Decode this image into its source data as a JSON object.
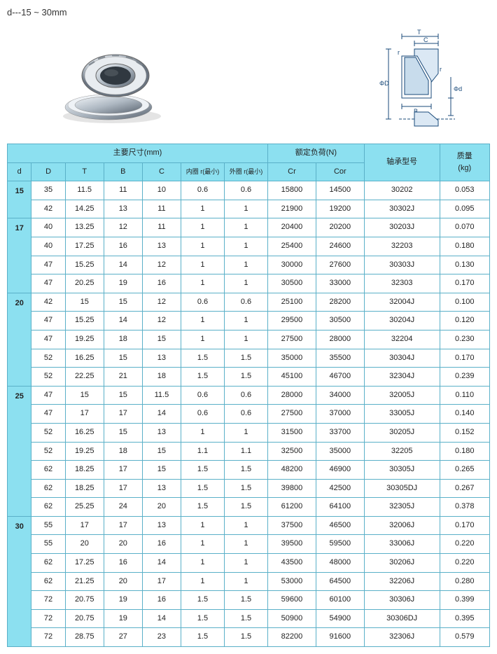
{
  "title": "d---15 ~ 30mm",
  "schematic_labels": {
    "T": "T",
    "C": "C",
    "r": "r",
    "B": "B",
    "D": "ΦD",
    "d": "Φd"
  },
  "headers": {
    "dims": "主要尺寸(mm)",
    "load": "额定负荷(N)",
    "model": "轴承型号",
    "mass": "质量\n(kg)",
    "d": "d",
    "D": "D",
    "T": "T",
    "B": "B",
    "C": "C",
    "inner": "内圈 r(最小)",
    "outer": "外圈 r(最小)",
    "Cr": "Cr",
    "Cor": "Cor"
  },
  "groups": [
    {
      "d": "15",
      "rows": [
        {
          "D": "35",
          "T": "11.5",
          "B": "11",
          "C": "10",
          "ir": "0.6",
          "or": "0.6",
          "Cr": "15800",
          "Cor": "14500",
          "m": "30202",
          "kg": "0.053"
        },
        {
          "D": "42",
          "T": "14.25",
          "B": "13",
          "C": "11",
          "ir": "1",
          "or": "1",
          "Cr": "21900",
          "Cor": "19200",
          "m": "30302J",
          "kg": "0.095"
        }
      ]
    },
    {
      "d": "17",
      "rows": [
        {
          "D": "40",
          "T": "13.25",
          "B": "12",
          "C": "11",
          "ir": "1",
          "or": "1",
          "Cr": "20400",
          "Cor": "20200",
          "m": "30203J",
          "kg": "0.070"
        },
        {
          "D": "40",
          "T": "17.25",
          "B": "16",
          "C": "13",
          "ir": "1",
          "or": "1",
          "Cr": "25400",
          "Cor": "24600",
          "m": "32203",
          "kg": "0.180"
        },
        {
          "D": "47",
          "T": "15.25",
          "B": "14",
          "C": "12",
          "ir": "1",
          "or": "1",
          "Cr": "30000",
          "Cor": "27600",
          "m": "30303J",
          "kg": "0.130"
        },
        {
          "D": "47",
          "T": "20.25",
          "B": "19",
          "C": "16",
          "ir": "1",
          "or": "1",
          "Cr": "30500",
          "Cor": "33000",
          "m": "32303",
          "kg": "0.170"
        }
      ]
    },
    {
      "d": "20",
      "rows": [
        {
          "D": "42",
          "T": "15",
          "B": "15",
          "C": "12",
          "ir": "0.6",
          "or": "0.6",
          "Cr": "25100",
          "Cor": "28200",
          "m": "32004J",
          "kg": "0.100"
        },
        {
          "D": "47",
          "T": "15.25",
          "B": "14",
          "C": "12",
          "ir": "1",
          "or": "1",
          "Cr": "29500",
          "Cor": "30500",
          "m": "30204J",
          "kg": "0.120"
        },
        {
          "D": "47",
          "T": "19.25",
          "B": "18",
          "C": "15",
          "ir": "1",
          "or": "1",
          "Cr": "27500",
          "Cor": "28000",
          "m": "32204",
          "kg": "0.230"
        },
        {
          "D": "52",
          "T": "16.25",
          "B": "15",
          "C": "13",
          "ir": "1.5",
          "or": "1.5",
          "Cr": "35000",
          "Cor": "35500",
          "m": "30304J",
          "kg": "0.170"
        },
        {
          "D": "52",
          "T": "22.25",
          "B": "21",
          "C": "18",
          "ir": "1.5",
          "or": "1.5",
          "Cr": "45100",
          "Cor": "46700",
          "m": "32304J",
          "kg": "0.239"
        }
      ]
    },
    {
      "d": "25",
      "rows": [
        {
          "D": "47",
          "T": "15",
          "B": "15",
          "C": "11.5",
          "ir": "0.6",
          "or": "0.6",
          "Cr": "28000",
          "Cor": "34000",
          "m": "32005J",
          "kg": "0.110"
        },
        {
          "D": "47",
          "T": "17",
          "B": "17",
          "C": "14",
          "ir": "0.6",
          "or": "0.6",
          "Cr": "27500",
          "Cor": "37000",
          "m": "33005J",
          "kg": "0.140"
        },
        {
          "D": "52",
          "T": "16.25",
          "B": "15",
          "C": "13",
          "ir": "1",
          "or": "1",
          "Cr": "31500",
          "Cor": "33700",
          "m": "30205J",
          "kg": "0.152"
        },
        {
          "D": "52",
          "T": "19.25",
          "B": "18",
          "C": "15",
          "ir": "1.1",
          "or": "1.1",
          "Cr": "32500",
          "Cor": "35000",
          "m": "32205",
          "kg": "0.180"
        },
        {
          "D": "62",
          "T": "18.25",
          "B": "17",
          "C": "15",
          "ir": "1.5",
          "or": "1.5",
          "Cr": "48200",
          "Cor": "46900",
          "m": "30305J",
          "kg": "0.265"
        },
        {
          "D": "62",
          "T": "18.25",
          "B": "17",
          "C": "13",
          "ir": "1.5",
          "or": "1.5",
          "Cr": "39800",
          "Cor": "42500",
          "m": "30305DJ",
          "kg": "0.267"
        },
        {
          "D": "62",
          "T": "25.25",
          "B": "24",
          "C": "20",
          "ir": "1.5",
          "or": "1.5",
          "Cr": "61200",
          "Cor": "64100",
          "m": "32305J",
          "kg": "0.378"
        }
      ]
    },
    {
      "d": "30",
      "rows": [
        {
          "D": "55",
          "T": "17",
          "B": "17",
          "C": "13",
          "ir": "1",
          "or": "1",
          "Cr": "37500",
          "Cor": "46500",
          "m": "32006J",
          "kg": "0.170"
        },
        {
          "D": "55",
          "T": "20",
          "B": "20",
          "C": "16",
          "ir": "1",
          "or": "1",
          "Cr": "39500",
          "Cor": "59500",
          "m": "33006J",
          "kg": "0.220"
        },
        {
          "D": "62",
          "T": "17.25",
          "B": "16",
          "C": "14",
          "ir": "1",
          "or": "1",
          "Cr": "43500",
          "Cor": "48000",
          "m": "30206J",
          "kg": "0.220"
        },
        {
          "D": "62",
          "T": "21.25",
          "B": "20",
          "C": "17",
          "ir": "1",
          "or": "1",
          "Cr": "53000",
          "Cor": "64500",
          "m": "32206J",
          "kg": "0.280"
        },
        {
          "D": "72",
          "T": "20.75",
          "B": "19",
          "C": "16",
          "ir": "1.5",
          "or": "1.5",
          "Cr": "59600",
          "Cor": "60100",
          "m": "30306J",
          "kg": "0.399"
        },
        {
          "D": "72",
          "T": "20.75",
          "B": "19",
          "C": "14",
          "ir": "1.5",
          "or": "1.5",
          "Cr": "50900",
          "Cor": "54900",
          "m": "30306DJ",
          "kg": "0.395"
        },
        {
          "D": "72",
          "T": "28.75",
          "B": "27",
          "C": "23",
          "ir": "1.5",
          "or": "1.5",
          "Cr": "82200",
          "Cor": "91600",
          "m": "32306J",
          "kg": "0.579"
        }
      ]
    }
  ],
  "style": {
    "header_bg": "#8ce0f0",
    "border_color": "#5ab0c8",
    "text_color": "#222222",
    "font_size": 11
  }
}
